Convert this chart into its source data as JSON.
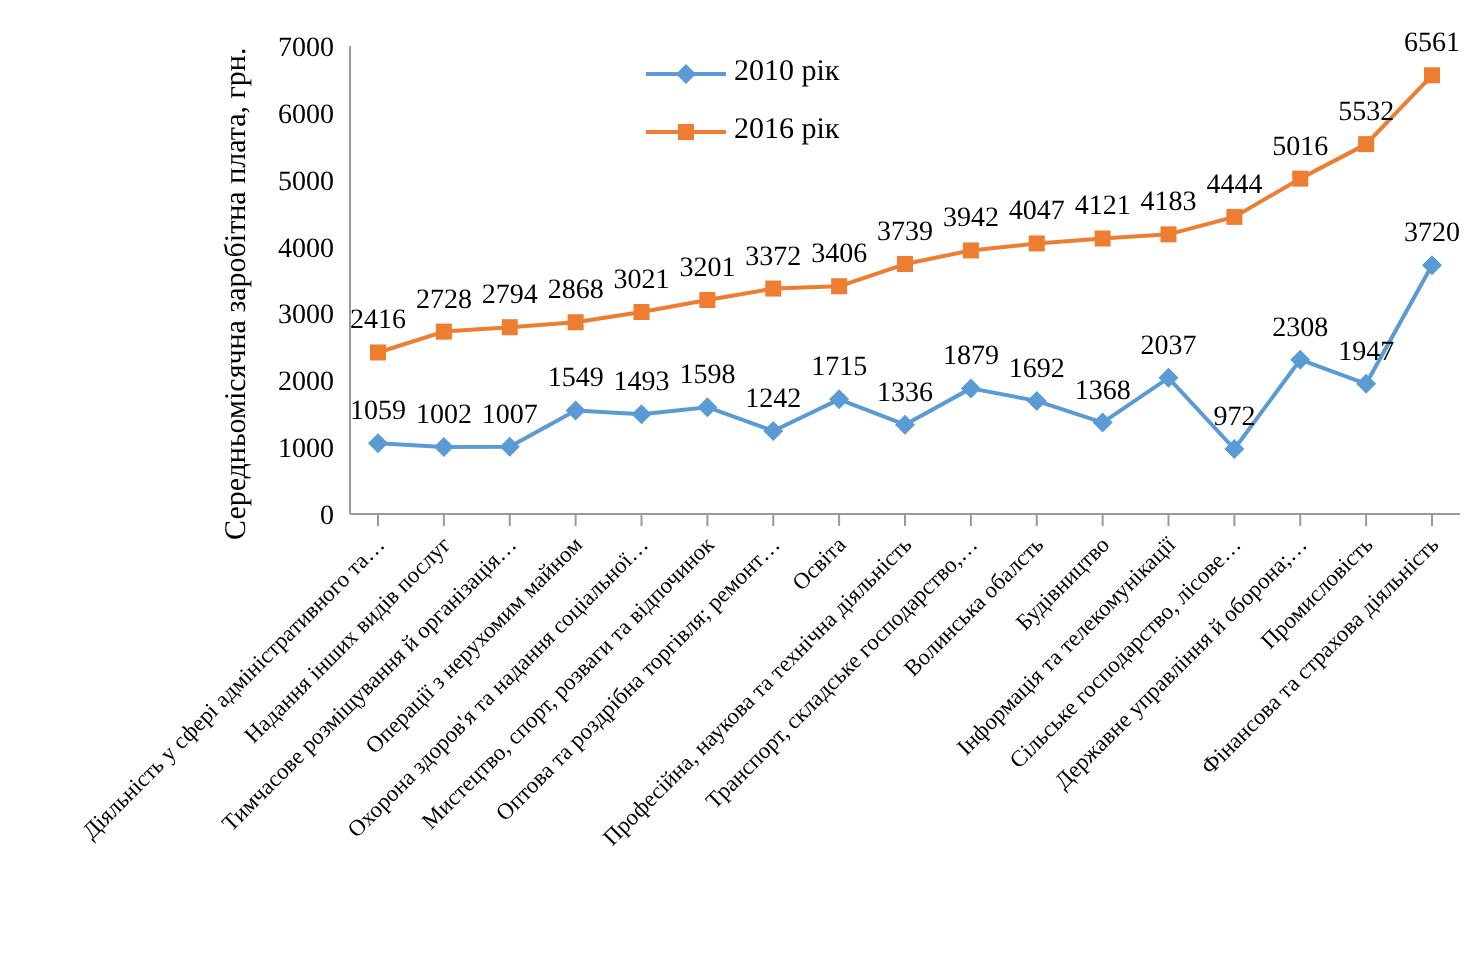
{
  "chart_data": {
    "type": "line",
    "ylabel": "Середньомісячна заробітна плата, грн.",
    "categories": [
      "Діяльність у сфері адміністративного та…",
      "Надання інших видів послуг",
      "Тимчасове розміщування й організація…",
      "Операції з нерухомим майном",
      "Охорона здоров'я та надання соціальної…",
      "Мистецтво, спорт, розваги та відпочинок",
      "Оптова та роздрібна торгівля; ремонт…",
      "Освіта",
      "Професійна, наукова та технічна діяльність",
      "Транспорт, складське господарство,…",
      "Волинська обалсть",
      "Будівництво",
      "Інформація та телекомунікації",
      "Сільське господарство, лісове…",
      "Державне управління й оборона;…",
      "Промисловість",
      "Фінансова та страхова діяльність"
    ],
    "series": [
      {
        "name": "2010 рік",
        "color": "#5b9bd5",
        "marker": "diamond",
        "values": [
          1059,
          1002,
          1007,
          1549,
          1493,
          1598,
          1242,
          1715,
          1336,
          1879,
          1692,
          1368,
          2037,
          972,
          2308,
          1947,
          3720
        ]
      },
      {
        "name": "2016 рік",
        "color": "#ed7d31",
        "marker": "square",
        "values": [
          2416,
          2728,
          2794,
          2868,
          3021,
          3201,
          3372,
          3406,
          3739,
          3942,
          4047,
          4121,
          4183,
          4444,
          5016,
          5532,
          6561
        ]
      }
    ],
    "ylim": [
      0,
      7000
    ],
    "yticks": [
      0,
      1000,
      2000,
      3000,
      4000,
      5000,
      6000,
      7000
    ],
    "grid": false,
    "legend": "top left",
    "data_labels": true
  }
}
